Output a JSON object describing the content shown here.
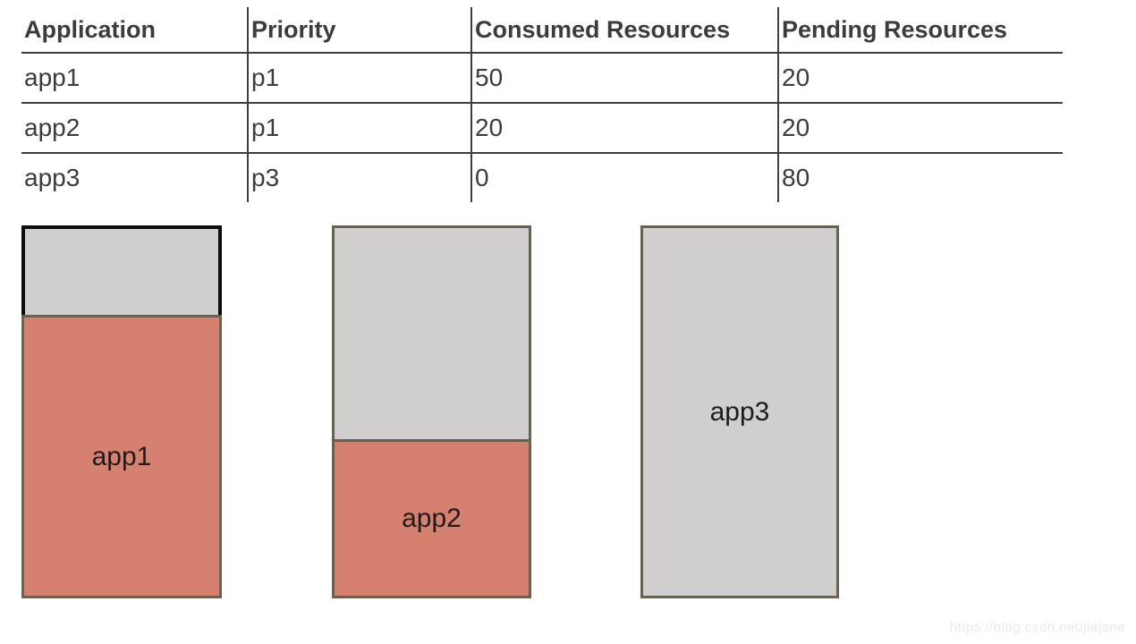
{
  "table": {
    "columns": [
      "Application",
      "Priority",
      "Consumed Resources",
      "Pending Resources"
    ],
    "rows": [
      {
        "application": "app1",
        "priority": "p1",
        "consumed": "50",
        "pending": "20"
      },
      {
        "application": "app2",
        "priority": "p1",
        "consumed": "20",
        "pending": "20"
      },
      {
        "application": "app3",
        "priority": "p3",
        "consumed": "0",
        "pending": "80"
      }
    ]
  },
  "bars": [
    {
      "label": "app1",
      "consumed_percent": 75.9,
      "pending_percent": 24.1
    },
    {
      "label": "app2",
      "consumed_percent": 42.6,
      "pending_percent": 57.4
    },
    {
      "label": "app3",
      "consumed_percent": 0,
      "pending_percent": 100
    }
  ],
  "chart_data": {
    "type": "bar",
    "subtype": "stacked vertical capacity boxes, one per application",
    "categories": [
      "app1",
      "app2",
      "app3"
    ],
    "series": [
      {
        "name": "Consumed Resources",
        "values": [
          50,
          20,
          0
        ],
        "color": "#d6816f"
      },
      {
        "name": "Pending Resources",
        "values": [
          20,
          20,
          80
        ],
        "color": "#d0cfcd"
      }
    ],
    "consumed_fill_percent_of_box": [
      75.9,
      42.6,
      0
    ],
    "title": "",
    "xlabel": "",
    "ylabel": "",
    "legend_position": "none",
    "axes_shown": false,
    "grid": false
  },
  "watermark": {
    "text": "https://blog.csdn.net/jiajane"
  },
  "colors": {
    "consumed_fill": "#d6816f",
    "pending_fill": "#d0cfcd",
    "bar_border_olive": "#69624e",
    "bar1_pending_border_black": "#0d0d0d",
    "table_line": "#3f3f3f",
    "table_text": "#3c3c3c",
    "bar_label_text": "#1c1c1c",
    "watermark_text": "#e9e9e9"
  }
}
